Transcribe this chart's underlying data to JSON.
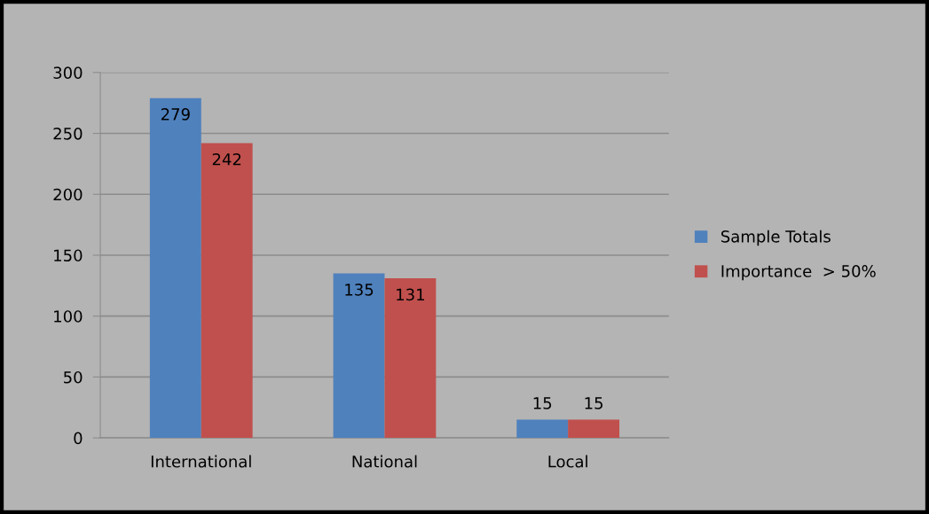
{
  "chart_data": {
    "type": "bar",
    "categories": [
      "International",
      "National",
      "Local"
    ],
    "series": [
      {
        "name": "Sample Totals",
        "color": "#4f81bd",
        "values": [
          279,
          135,
          15
        ]
      },
      {
        "name": "Importance  > 50%",
        "color": "#c0504d",
        "values": [
          242,
          131,
          15
        ]
      }
    ],
    "ylim": [
      0,
      300
    ],
    "yticks": [
      0,
      50,
      100,
      150,
      200,
      250,
      300
    ],
    "grid": "y",
    "legend": "right",
    "data_labels": true
  }
}
